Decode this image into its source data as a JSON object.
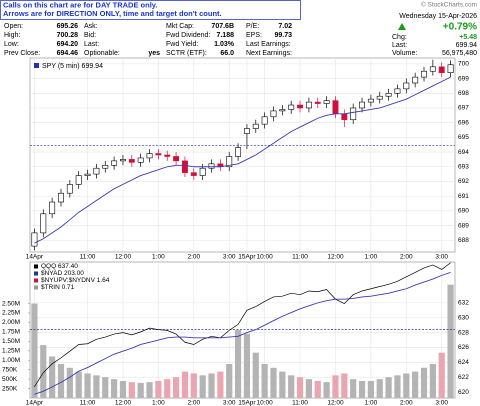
{
  "banner": [
    "Calls on this chart are for DAY TRADE only.",
    "Arrows are for DIRECTION ONLY, time and target don't count."
  ],
  "header": {
    "columns": [
      [
        {
          "label": "Open:",
          "value": "695.26"
        },
        {
          "label": "High:",
          "value": "700.28"
        },
        {
          "label": "Low:",
          "value": "694.20"
        },
        {
          "label": "Prev Close:",
          "value": "694.46"
        }
      ],
      [
        {
          "label": "Ask:"
        },
        {
          "label": "Bid:"
        },
        {
          "label": "Last:"
        },
        {
          "label": "Optionable:",
          "value": "yes"
        }
      ],
      [
        {
          "label": "Mkt Cap:",
          "value": "707.6B"
        },
        {
          "label": "Fwd Dividend:",
          "value": "7.188"
        },
        {
          "label": "Fwd Yield:",
          "value": "1.03%"
        },
        {
          "label": "SCTR (ETF):",
          "value": "66.0"
        }
      ],
      [
        {
          "label": "P/E:",
          "value": "7.02"
        },
        {
          "label": "EPS:",
          "value": "99.73"
        },
        {
          "label": "Last Earnings:"
        },
        {
          "label": "Next Earnings:"
        }
      ]
    ],
    "right": {
      "copyright": "© StockCharts.com",
      "date": "Wednesday 15-Apr-2026",
      "change_pct": "+0.79%",
      "chg_label": "Chg:",
      "chg": "+5.48",
      "last_label": "Last:",
      "last": "699.94",
      "volume_label": "Volume:",
      "volume": "56,975,480"
    }
  },
  "chart_data": [
    {
      "type": "candlestick",
      "grid": true,
      "categories": [
        "14Apr",
        null,
        null,
        null,
        null,
        null,
        "11:00",
        null,
        null,
        null,
        "12:00",
        null,
        null,
        null,
        "1:00",
        null,
        null,
        null,
        "2:00",
        null,
        null,
        null,
        "3:00",
        null,
        "15Apr",
        null,
        "10:00",
        null,
        null,
        null,
        "11:00",
        null,
        null,
        null,
        "12:00",
        null,
        null,
        null,
        "1:00",
        null,
        null,
        null,
        "2:00",
        null,
        null,
        null,
        "3:00",
        null
      ],
      "ylim": [
        687.2,
        700.4
      ],
      "yticks": [
        688,
        689,
        690,
        691,
        692,
        693,
        694,
        695,
        696,
        697,
        698,
        699,
        700
      ],
      "up_color": "#ffffff",
      "down_color": "#d0103a",
      "outline_color": "#000000",
      "reference_line": 694.46,
      "reference_color": "#2233aa",
      "series": [
        {
          "name": "SPY (5 min) 699.94",
          "color": "#2233aa",
          "open": [
            687.6,
            688.5,
            689.8,
            690.6,
            691.2,
            691.8,
            692.4,
            692.5,
            692.9,
            693.1,
            693.4,
            693.5,
            693.3,
            693.6,
            693.9,
            693.8,
            693.7,
            693.4,
            692.6,
            692.4,
            692.9,
            693.2,
            693.0,
            693.7,
            695.26,
            695.6,
            695.9,
            696.4,
            696.8,
            696.9,
            697.2,
            697.0,
            697.4,
            697.3,
            697.5,
            696.6,
            696.2,
            697.0,
            697.4,
            697.6,
            697.8,
            698.0,
            698.3,
            698.7,
            699.1,
            699.5,
            699.8,
            699.4
          ],
          "high": [
            688.8,
            690.1,
            690.9,
            691.5,
            692.1,
            692.7,
            692.8,
            693.2,
            693.4,
            693.7,
            693.8,
            693.8,
            693.9,
            694.2,
            694.2,
            694.1,
            694.0,
            693.7,
            692.9,
            693.2,
            693.5,
            693.5,
            694.0,
            694.6,
            695.9,
            696.2,
            696.7,
            697.1,
            697.2,
            697.5,
            697.5,
            697.7,
            697.7,
            697.8,
            697.8,
            696.9,
            697.3,
            697.7,
            697.9,
            698.1,
            698.3,
            698.6,
            699.0,
            699.4,
            699.8,
            700.28,
            700.1,
            700.24
          ],
          "low": [
            687.3,
            688.2,
            689.5,
            690.3,
            690.9,
            691.5,
            692.1,
            692.2,
            692.6,
            692.8,
            693.1,
            693.0,
            693.0,
            693.3,
            693.5,
            693.4,
            693.1,
            692.3,
            692.1,
            692.1,
            692.6,
            692.7,
            692.7,
            693.4,
            694.2,
            695.3,
            695.6,
            696.1,
            696.5,
            696.6,
            696.7,
            696.7,
            697.0,
            697.0,
            696.3,
            695.7,
            695.9,
            696.7,
            697.1,
            697.3,
            697.5,
            697.7,
            698.0,
            698.4,
            698.8,
            699.2,
            699.1,
            699.1
          ],
          "close": [
            688.5,
            689.8,
            690.6,
            691.2,
            691.8,
            692.4,
            692.5,
            692.9,
            693.1,
            693.4,
            693.5,
            693.3,
            693.6,
            693.9,
            693.8,
            693.7,
            693.4,
            692.6,
            692.4,
            692.9,
            693.2,
            693.0,
            693.7,
            694.3,
            695.6,
            695.9,
            696.4,
            696.8,
            696.9,
            697.2,
            697.0,
            697.4,
            697.3,
            697.5,
            696.6,
            696.2,
            697.0,
            697.4,
            697.6,
            697.8,
            698.0,
            698.3,
            698.7,
            699.1,
            699.5,
            699.8,
            699.4,
            699.94
          ]
        },
        {
          "color": "#3a3ab0",
          "values": [
            687.8,
            688.1,
            688.5,
            688.9,
            689.4,
            689.9,
            690.3,
            690.7,
            691.1,
            691.5,
            691.8,
            692.1,
            692.4,
            692.6,
            692.8,
            693.0,
            693.1,
            693.1,
            693.0,
            693.0,
            693.0,
            693.0,
            693.1,
            693.2,
            693.5,
            693.8,
            694.2,
            694.6,
            695.0,
            695.4,
            695.7,
            696.0,
            696.3,
            696.5,
            696.6,
            696.6,
            696.7,
            696.8,
            696.9,
            697.0,
            697.2,
            697.4,
            697.6,
            697.9,
            698.2,
            698.5,
            698.8,
            699.1
          ]
        }
      ]
    },
    {
      "type": "line",
      "grid": true,
      "categories": [
        "14Apr",
        null,
        null,
        null,
        null,
        null,
        "11:00",
        null,
        null,
        null,
        "12:00",
        null,
        null,
        null,
        "1:00",
        null,
        null,
        null,
        "2:00",
        null,
        null,
        null,
        "3:00",
        null,
        "15Apr",
        null,
        "10:00",
        null,
        null,
        null,
        "11:00",
        null,
        null,
        null,
        "12:00",
        null,
        null,
        null,
        "1:00",
        null,
        null,
        null,
        "2:00",
        null,
        null,
        null,
        "3:00",
        null
      ],
      "legend": [
        "$NYAD 203.00",
        "$NYUPV:$NYDNV 1.64",
        "$TRIN 0.71"
      ],
      "legend_colors": [
        "#2233aa",
        "#d0103a",
        "#999999"
      ],
      "ylim": [
        0,
        3600000
      ],
      "yticks": [
        {
          "value": 250000,
          "label": "250K"
        },
        {
          "value": 500000,
          "label": "500K"
        },
        {
          "value": 750000,
          "label": "750K"
        },
        {
          "value": 1000000,
          "label": "1.00M"
        },
        {
          "value": 1250000,
          "label": "1.25M"
        },
        {
          "value": 1500000,
          "label": "1.50M"
        },
        {
          "value": 1750000,
          "label": "1.75M"
        },
        {
          "value": 2000000,
          "label": "2.00M"
        },
        {
          "value": 2250000,
          "label": "2.25M"
        },
        {
          "value": 2500000,
          "label": "2.50M"
        }
      ],
      "y2lim": [
        619.2,
        637.5
      ],
      "y2ticks": [
        620,
        622,
        624,
        626,
        628,
        630,
        632
      ],
      "volume": [
        2500000,
        1400000,
        1100000,
        900000,
        800000,
        700000,
        650000,
        600000,
        550000,
        500000,
        450000,
        420000,
        400000,
        420000,
        450000,
        500000,
        550000,
        700000,
        650000,
        600000,
        650000,
        700000,
        900000,
        1800000,
        1700000,
        1200000,
        900000,
        800000,
        700000,
        600000,
        550000,
        500000,
        450000,
        420000,
        600000,
        650000,
        500000,
        450000,
        450000,
        500000,
        550000,
        600000,
        650000,
        700000,
        800000,
        900000,
        1200000,
        3000000
      ],
      "volume_up_color": "#b4b4b4",
      "volume_down_color": "#eaa6b0",
      "reference_line": 628.4,
      "reference_color": "#2233aa",
      "series": [
        {
          "name": "QQQ 637.40",
          "color": "#000000",
          "axis": "y2",
          "values": [
            620.7,
            622.6,
            623.8,
            624.6,
            625.5,
            626.4,
            626.5,
            627.1,
            627.4,
            627.8,
            628.0,
            627.7,
            628.1,
            628.6,
            628.4,
            628.3,
            627.8,
            626.7,
            626.4,
            627.1,
            627.5,
            627.3,
            628.3,
            629.1,
            631.0,
            631.5,
            632.2,
            632.8,
            632.9,
            633.3,
            633.1,
            633.6,
            633.5,
            633.8,
            632.5,
            631.9,
            633.1,
            633.6,
            633.9,
            634.2,
            634.5,
            634.9,
            635.5,
            636.1,
            636.7,
            637.1,
            636.5,
            637.4
          ]
        },
        {
          "color": "#3a3ab0",
          "axis": "y2",
          "values": [
            619.7,
            620.1,
            620.7,
            621.3,
            622.0,
            622.8,
            623.3,
            623.9,
            624.5,
            625.1,
            625.5,
            625.9,
            626.4,
            626.7,
            627.0,
            627.3,
            627.4,
            627.4,
            627.3,
            627.3,
            627.3,
            627.3,
            627.4,
            627.5,
            628.0,
            628.4,
            629.0,
            629.6,
            630.2,
            630.7,
            631.2,
            631.6,
            632.0,
            632.3,
            632.5,
            632.5,
            632.6,
            632.8,
            632.9,
            633.1,
            633.3,
            633.6,
            633.9,
            634.4,
            634.8,
            635.2,
            635.7,
            636.1
          ]
        }
      ]
    }
  ]
}
